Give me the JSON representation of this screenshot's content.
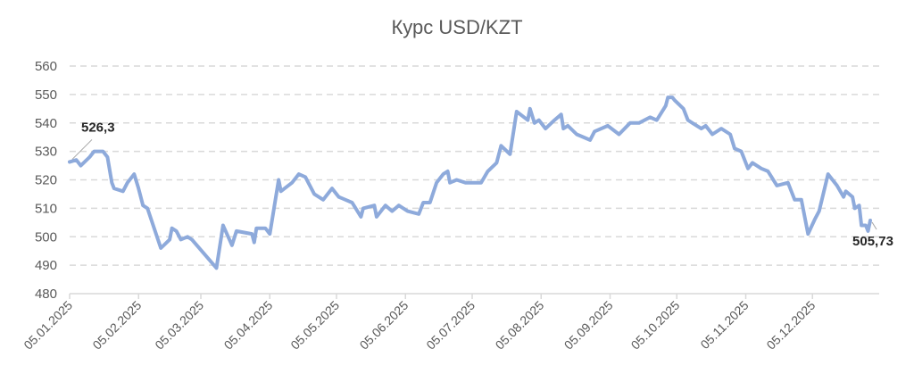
{
  "chart_data": {
    "type": "line",
    "title": "Курс USD/KZT",
    "xlabel": "",
    "ylabel": "",
    "ylim": [
      480,
      560
    ],
    "yticks": [
      "480",
      "490",
      "500",
      "510",
      "520",
      "530",
      "540",
      "550",
      "560"
    ],
    "xlim": [
      "05.01.2025",
      "04.01.2026"
    ],
    "xticks": [
      "05.01.2025",
      "05.02.2025",
      "05.03.2025",
      "05.04.2025",
      "05.05.2025",
      "05.06.2025",
      "05.07.2025",
      "05.08.2025",
      "05.09.2025",
      "05.10.2025",
      "05.11.2025",
      "05.12.2025"
    ],
    "grid": "horizontal-dashed",
    "legend": "none",
    "color": "#8eaadb",
    "annotations": [
      {
        "text": "526,3",
        "date": "05.01.2025",
        "value": 526.3
      },
      {
        "text": "505,73",
        "date": "31.12.2025",
        "value": 505.73
      }
    ],
    "series": [
      {
        "points": [
          [
            "05.01.2025",
            526.3
          ],
          [
            "08.01.2025",
            527
          ],
          [
            "10.01.2025",
            525
          ],
          [
            "14.01.2025",
            528
          ],
          [
            "16.01.2025",
            530
          ],
          [
            "20.01.2025",
            530
          ],
          [
            "22.01.2025",
            528
          ],
          [
            "24.01.2025",
            519
          ],
          [
            "25.01.2025",
            517
          ],
          [
            "29.01.2025",
            516
          ],
          [
            "31.01.2025",
            519
          ],
          [
            "03.02.2025",
            522
          ],
          [
            "05.02.2025",
            517
          ],
          [
            "07.02.2025",
            511
          ],
          [
            "09.02.2025",
            510
          ],
          [
            "15.02.2025",
            496
          ],
          [
            "19.02.2025",
            499
          ],
          [
            "20.02.2025",
            503
          ],
          [
            "22.02.2025",
            502
          ],
          [
            "24.02.2025",
            499
          ],
          [
            "27.02.2025",
            500
          ],
          [
            "01.03.2025",
            499
          ],
          [
            "12.03.2025",
            489
          ],
          [
            "15.03.2025",
            504
          ],
          [
            "19.03.2025",
            497
          ],
          [
            "21.03.2025",
            502
          ],
          [
            "28.03.2025",
            501
          ],
          [
            "29.03.2025",
            498
          ],
          [
            "30.03.2025",
            503
          ],
          [
            "03.04.2025",
            503
          ],
          [
            "05.04.2025",
            501
          ],
          [
            "09.04.2025",
            520
          ],
          [
            "10.04.2025",
            516
          ],
          [
            "15.04.2025",
            519
          ],
          [
            "18.04.2025",
            522
          ],
          [
            "21.04.2025",
            521
          ],
          [
            "25.04.2025",
            515
          ],
          [
            "29.04.2025",
            513
          ],
          [
            "03.05.2025",
            517
          ],
          [
            "06.05.2025",
            514
          ],
          [
            "12.05.2025",
            512
          ],
          [
            "16.05.2025",
            507
          ],
          [
            "17.05.2025",
            510
          ],
          [
            "22.05.2025",
            511
          ],
          [
            "23.05.2025",
            507
          ],
          [
            "27.05.2025",
            511
          ],
          [
            "30.05.2025",
            509
          ],
          [
            "02.06.2025",
            511
          ],
          [
            "06.06.2025",
            509
          ],
          [
            "11.06.2025",
            508
          ],
          [
            "13.06.2025",
            512
          ],
          [
            "16.06.2025",
            512
          ],
          [
            "19.06.2025",
            519
          ],
          [
            "22.06.2025",
            522
          ],
          [
            "24.06.2025",
            523
          ],
          [
            "25.06.2025",
            519
          ],
          [
            "28.06.2025",
            520
          ],
          [
            "02.07.2025",
            519
          ],
          [
            "09.07.2025",
            519
          ],
          [
            "12.07.2025",
            523
          ],
          [
            "16.07.2025",
            526
          ],
          [
            "18.07.2025",
            532
          ],
          [
            "22.07.2025",
            529
          ],
          [
            "25.07.2025",
            544
          ],
          [
            "30.07.2025",
            541
          ],
          [
            "31.07.2025",
            545
          ],
          [
            "02.08.2025",
            540
          ],
          [
            "04.08.2025",
            541
          ],
          [
            "07.08.2025",
            538
          ],
          [
            "11.08.2025",
            541
          ],
          [
            "14.08.2025",
            543
          ],
          [
            "15.08.2025",
            538
          ],
          [
            "17.08.2025",
            539
          ],
          [
            "21.08.2025",
            536
          ],
          [
            "27.08.2025",
            534
          ],
          [
            "29.08.2025",
            537
          ],
          [
            "04.09.2025",
            539
          ],
          [
            "09.09.2025",
            536
          ],
          [
            "14.09.2025",
            540
          ],
          [
            "18.09.2025",
            540
          ],
          [
            "23.09.2025",
            542
          ],
          [
            "26.09.2025",
            541
          ],
          [
            "30.09.2025",
            546
          ],
          [
            "01.10.2025",
            549
          ],
          [
            "03.10.2025",
            549
          ],
          [
            "04.10.2025",
            548
          ],
          [
            "08.10.2025",
            545
          ],
          [
            "10.10.2025",
            541
          ],
          [
            "12.10.2025",
            540
          ],
          [
            "16.10.2025",
            538
          ],
          [
            "18.10.2025",
            539
          ],
          [
            "21.10.2025",
            536
          ],
          [
            "25.10.2025",
            538
          ],
          [
            "29.10.2025",
            536
          ],
          [
            "31.10.2025",
            531
          ],
          [
            "03.11.2025",
            530
          ],
          [
            "05.11.2025",
            526
          ],
          [
            "06.11.2025",
            524
          ],
          [
            "08.11.2025",
            526
          ],
          [
            "12.11.2025",
            524
          ],
          [
            "15.11.2025",
            523
          ],
          [
            "19.11.2025",
            518
          ],
          [
            "24.11.2025",
            519
          ],
          [
            "27.11.2025",
            513
          ],
          [
            "30.11.2025",
            513
          ],
          [
            "03.12.2025",
            501
          ],
          [
            "06.12.2025",
            506
          ],
          [
            "08.12.2025",
            509
          ],
          [
            "12.12.2025",
            522
          ],
          [
            "16.12.2025",
            518
          ],
          [
            "19.12.2025",
            514
          ],
          [
            "20.12.2025",
            516
          ],
          [
            "23.12.2025",
            514
          ],
          [
            "24.12.2025",
            510
          ],
          [
            "26.12.2025",
            511
          ],
          [
            "27.12.2025",
            504
          ],
          [
            "29.12.2025",
            504
          ],
          [
            "30.12.2025",
            502
          ],
          [
            "31.12.2025",
            505.73
          ]
        ]
      }
    ]
  }
}
